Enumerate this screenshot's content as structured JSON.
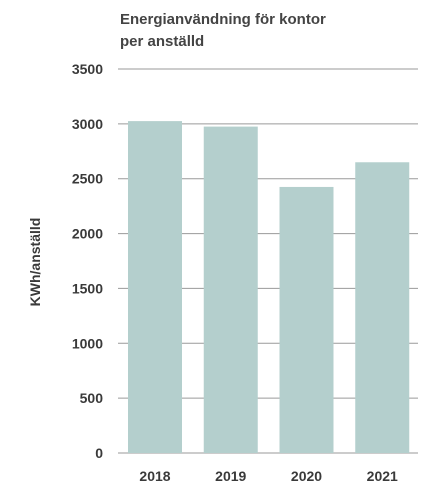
{
  "chart_data": {
    "type": "bar",
    "title_lines": [
      "Energianvändning för kontor",
      "per anställd"
    ],
    "ylabel": "KWh/anställd",
    "xlabel": "",
    "categories": [
      "2018",
      "2019",
      "2020",
      "2021"
    ],
    "values": [
      3025,
      2975,
      2425,
      2650
    ],
    "ylim": [
      0,
      3500
    ],
    "yticks": [
      0,
      500,
      1000,
      1500,
      2000,
      2500,
      3000,
      3500
    ],
    "grid": true,
    "legend": "none",
    "bar_color": "#b4cfcd",
    "grid_color": "#9a9a9a",
    "text_color": "#3a3a3a"
  }
}
